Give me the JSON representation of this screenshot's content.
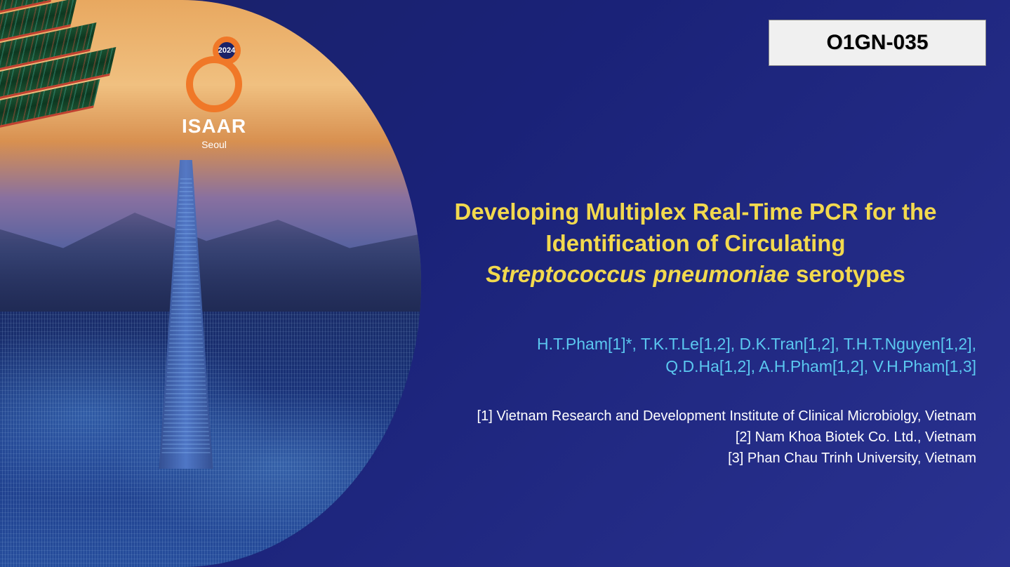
{
  "badge": {
    "code": "O1GN-035",
    "bg_color": "#f0f0f0",
    "text_color": "#000000",
    "font_size": 30
  },
  "logo": {
    "year": "2024",
    "name": "ISAAR",
    "city": "Seoul",
    "ring_color": "#f07828",
    "text_color": "#ffffff"
  },
  "title": {
    "line1": "Developing Multiplex Real-Time PCR for the",
    "line2": "Identification of Circulating",
    "line3_italic": "Streptococcus pneumoniae",
    "line3_rest": " serotypes",
    "color": "#f2d94e",
    "font_size": 33
  },
  "authors": {
    "line1": "H.T.Pham[1]*, T.K.T.Le[1,2], D.K.Tran[1,2], T.H.T.Nguyen[1,2],",
    "line2": "Q.D.Ha[1,2], A.H.Pham[1,2], V.H.Pham[1,3]",
    "color": "#5bc8f0",
    "font_size": 23
  },
  "affiliations": {
    "items": [
      "[1] Vietnam Research and Development Institute of Clinical Microbiolgy, Vietnam",
      "[2] Nam Khoa Biotek Co. Ltd., Vietnam",
      "[3] Phan Chau Trinh University, Vietnam"
    ],
    "color": "#ffffff",
    "font_size": 20
  },
  "background": {
    "slide_color": "#1a2268",
    "city_gradient_top": "#e8a860",
    "city_gradient_bottom": "#0c2858",
    "tower_color": "#5078c8"
  }
}
